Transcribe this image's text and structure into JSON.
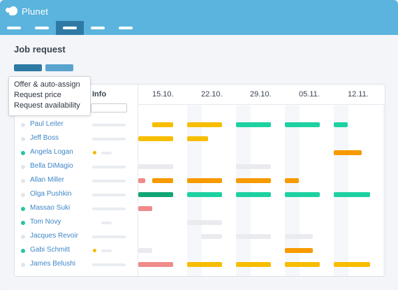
{
  "app": {
    "name": "Plunet"
  },
  "nav": {
    "items": 5,
    "active_index": 2
  },
  "page": {
    "title": "Job request"
  },
  "dropdown": {
    "items": [
      "Offer & auto-assign",
      "Request price",
      "Request availability"
    ]
  },
  "table": {
    "info_header": "Info",
    "columns": [
      "15.10.",
      "22.10.",
      "29.10.",
      "05.11.",
      "12.11."
    ],
    "colors": {
      "yellow": "#f7bd00",
      "teal": "#1dd1a1",
      "orange": "#f79a00",
      "grey": "#e9ebee",
      "pink": "#ef8b8b",
      "green": "#12a575",
      "dot_teal": "#29c2a4",
      "dot_grey": "#e2e5e9",
      "flag": "#f2b800"
    },
    "rows": [
      {
        "name": "Paul Leiter",
        "dot": "grey",
        "flag": false,
        "bars": [
          [
            "yellow",
            20,
            30
          ],
          [
            "yellow",
            70,
            50
          ],
          [
            "teal",
            140,
            50
          ],
          [
            "teal",
            210,
            50
          ],
          [
            "teal",
            280,
            20
          ]
        ]
      },
      {
        "name": "Jeff Boss",
        "dot": "grey",
        "flag": false,
        "bars": [
          [
            "yellow",
            0,
            50
          ],
          [
            "yellow",
            70,
            30
          ]
        ]
      },
      {
        "name": "Angela Logan",
        "dot": "teal",
        "flag": true,
        "bars": [
          [
            "orange",
            280,
            40
          ]
        ]
      },
      {
        "name": "Bella DiMagio",
        "dot": "grey",
        "flag": false,
        "bars": [
          [
            "grey",
            0,
            50
          ],
          [
            "grey",
            140,
            50
          ]
        ]
      },
      {
        "name": "Allan Miller",
        "dot": "grey",
        "flag": false,
        "bars": [
          [
            "pink",
            0,
            10
          ],
          [
            "orange",
            20,
            30
          ],
          [
            "orange",
            70,
            50
          ],
          [
            "orange",
            140,
            50
          ],
          [
            "orange",
            210,
            20
          ]
        ]
      },
      {
        "name": "Olga Pushkin",
        "dot": "grey",
        "flag": false,
        "bars": [
          [
            "green",
            0,
            50
          ],
          [
            "teal",
            70,
            50
          ],
          [
            "teal",
            140,
            50
          ],
          [
            "teal",
            210,
            50
          ],
          [
            "teal",
            280,
            52
          ]
        ]
      },
      {
        "name": "Massao Suki",
        "dot": "teal",
        "flag": false,
        "bars": [
          [
            "pink",
            0,
            20
          ]
        ]
      },
      {
        "name": "Tom Novy",
        "dot": "teal",
        "flag": false,
        "short": true,
        "bars": [
          [
            "grey",
            70,
            50
          ]
        ]
      },
      {
        "name": "Jacques Revoir",
        "dot": "grey",
        "flag": false,
        "bars": [
          [
            "grey",
            90,
            30
          ],
          [
            "grey",
            140,
            50
          ],
          [
            "grey",
            210,
            40
          ]
        ]
      },
      {
        "name": "Gabi Schmitt",
        "dot": "teal",
        "flag": true,
        "bars": [
          [
            "grey",
            0,
            20
          ],
          [
            "orange",
            210,
            40
          ]
        ]
      },
      {
        "name": "James Belushi",
        "dot": "grey",
        "flag": false,
        "bars": [
          [
            "pink",
            0,
            50
          ],
          [
            "yellow",
            70,
            50
          ],
          [
            "yellow",
            140,
            50
          ],
          [
            "yellow",
            210,
            50
          ],
          [
            "yellow",
            280,
            52
          ]
        ]
      }
    ]
  }
}
